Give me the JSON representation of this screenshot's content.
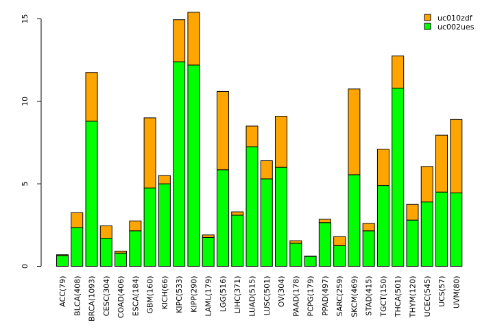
{
  "chart_data": {
    "type": "bar",
    "stacked": true,
    "title": "",
    "xlabel": "",
    "ylabel": "",
    "ylim": [
      0,
      15.5
    ],
    "yticks": [
      0,
      5,
      10,
      15
    ],
    "categories": [
      "ACC(79)",
      "BLCA(408)",
      "BRCA(1093)",
      "CESC(304)",
      "COAD(406)",
      "ESCA(184)",
      "GBM(160)",
      "KICH(66)",
      "KIPC(533)",
      "KIPP(290)",
      "LAML(179)",
      "LGG(516)",
      "LIHC(371)",
      "LUAD(515)",
      "LUSC(501)",
      "OV(304)",
      "PAAD(178)",
      "PCPG(179)",
      "PPAD(497)",
      "SARC(259)",
      "SKCM(469)",
      "STAD(415)",
      "TGCT(150)",
      "THCA(501)",
      "THYM(120)",
      "UCEC(545)",
      "UCS(57)",
      "UVM(80)"
    ],
    "series": [
      {
        "name": "uc002ues",
        "color": "#00ff00",
        "values": [
          0.65,
          2.35,
          8.8,
          1.7,
          0.8,
          2.15,
          4.75,
          5.0,
          12.4,
          12.2,
          1.75,
          5.85,
          3.1,
          7.25,
          5.3,
          6.0,
          1.4,
          0.6,
          2.65,
          1.25,
          5.55,
          2.15,
          4.9,
          10.8,
          2.8,
          3.9,
          4.5,
          4.45
        ]
      },
      {
        "name": "uc010zdf",
        "color": "#ffa500",
        "values": [
          0.05,
          0.9,
          2.95,
          0.75,
          0.12,
          0.6,
          4.25,
          0.5,
          2.55,
          3.2,
          0.15,
          4.75,
          0.2,
          1.25,
          1.1,
          3.1,
          0.15,
          0.02,
          0.2,
          0.55,
          5.2,
          0.45,
          2.2,
          1.95,
          0.95,
          2.15,
          3.45,
          4.45
        ]
      }
    ],
    "legend": {
      "position": "top-right",
      "entries": [
        "uc010zdf",
        "uc002ues"
      ]
    }
  }
}
